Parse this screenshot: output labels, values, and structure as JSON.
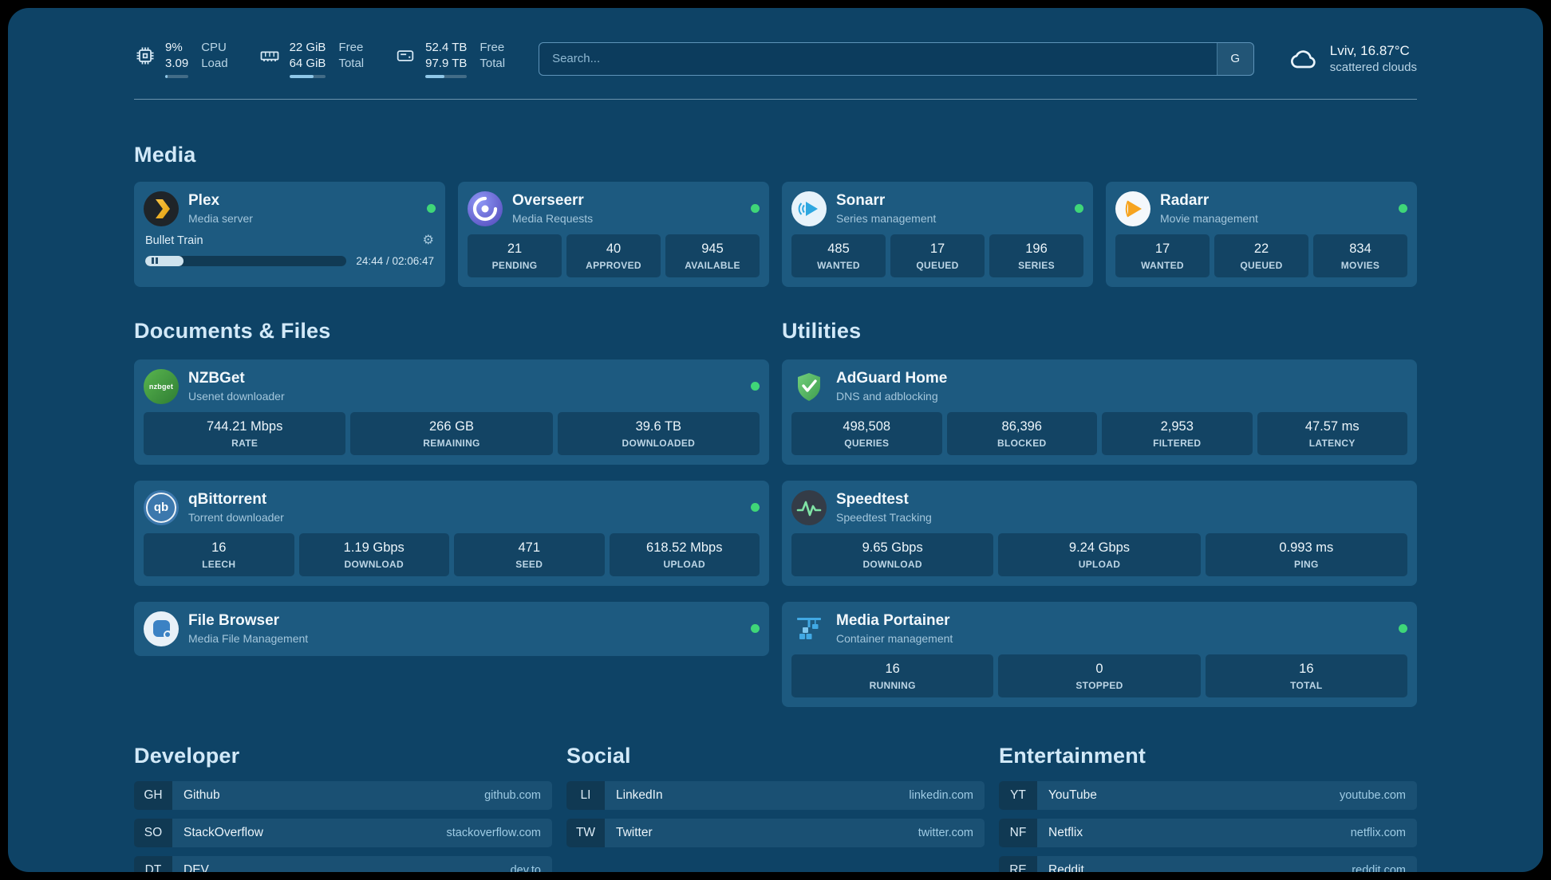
{
  "header": {
    "widgets": [
      {
        "icon": "cpu-icon",
        "value1": "9%",
        "value2": "3.09",
        "label1": "CPU",
        "label2": "Load",
        "bar_pct": 9
      },
      {
        "icon": "memory-icon",
        "value1": "22 GiB",
        "value2": "64 GiB",
        "label1": "Free",
        "label2": "Total",
        "bar_pct": 66
      },
      {
        "icon": "disk-icon",
        "value1": "52.4 TB",
        "value2": "97.9 TB",
        "label1": "Free",
        "label2": "Total",
        "bar_pct": 46
      }
    ],
    "search": {
      "placeholder": "Search...",
      "button_label": "G"
    },
    "weather": {
      "location": "Lviv, 16.87°C",
      "condition": "scattered clouds"
    }
  },
  "sections": {
    "media": {
      "title": "Media"
    },
    "documents": {
      "title": "Documents & Files"
    },
    "utilities": {
      "title": "Utilities"
    }
  },
  "services": {
    "plex": {
      "name": "Plex",
      "subtitle": "Media server",
      "now_playing": "Bullet Train",
      "time": "24:44 / 02:06:47",
      "progress_pct": 19
    },
    "overseerr": {
      "name": "Overseerr",
      "subtitle": "Media Requests",
      "stats": [
        {
          "value": "21",
          "label": "PENDING"
        },
        {
          "value": "40",
          "label": "APPROVED"
        },
        {
          "value": "945",
          "label": "AVAILABLE"
        }
      ]
    },
    "sonarr": {
      "name": "Sonarr",
      "subtitle": "Series management",
      "stats": [
        {
          "value": "485",
          "label": "WANTED"
        },
        {
          "value": "17",
          "label": "QUEUED"
        },
        {
          "value": "196",
          "label": "SERIES"
        }
      ]
    },
    "radarr": {
      "name": "Radarr",
      "subtitle": "Movie management",
      "stats": [
        {
          "value": "17",
          "label": "WANTED"
        },
        {
          "value": "22",
          "label": "QUEUED"
        },
        {
          "value": "834",
          "label": "MOVIES"
        }
      ]
    },
    "nzbget": {
      "name": "NZBGet",
      "subtitle": "Usenet downloader",
      "icon_text": "nzbget",
      "stats": [
        {
          "value": "744.21 Mbps",
          "label": "RATE"
        },
        {
          "value": "266 GB",
          "label": "REMAINING"
        },
        {
          "value": "39.6 TB",
          "label": "DOWNLOADED"
        }
      ]
    },
    "qbittorrent": {
      "name": "qBittorrent",
      "subtitle": "Torrent downloader",
      "icon_text": "qb",
      "stats": [
        {
          "value": "16",
          "label": "LEECH"
        },
        {
          "value": "1.19 Gbps",
          "label": "DOWNLOAD"
        },
        {
          "value": "471",
          "label": "SEED"
        },
        {
          "value": "618.52 Mbps",
          "label": "UPLOAD"
        }
      ]
    },
    "filebrowser": {
      "name": "File Browser",
      "subtitle": "Media File Management"
    },
    "adguard": {
      "name": "AdGuard Home",
      "subtitle": "DNS and adblocking",
      "stats": [
        {
          "value": "498,508",
          "label": "QUERIES"
        },
        {
          "value": "86,396",
          "label": "BLOCKED"
        },
        {
          "value": "2,953",
          "label": "FILTERED"
        },
        {
          "value": "47.57 ms",
          "label": "LATENCY"
        }
      ]
    },
    "speedtest": {
      "name": "Speedtest",
      "subtitle": "Speedtest Tracking",
      "stats": [
        {
          "value": "9.65 Gbps",
          "label": "DOWNLOAD"
        },
        {
          "value": "9.24 Gbps",
          "label": "UPLOAD"
        },
        {
          "value": "0.993 ms",
          "label": "PING"
        }
      ]
    },
    "portainer": {
      "name": "Media Portainer",
      "subtitle": "Container management",
      "stats": [
        {
          "value": "16",
          "label": "RUNNING"
        },
        {
          "value": "0",
          "label": "STOPPED"
        },
        {
          "value": "16",
          "label": "TOTAL"
        }
      ]
    }
  },
  "bookmarks": [
    {
      "title": "Developer",
      "items": [
        {
          "abbr": "GH",
          "name": "Github",
          "url": "github.com"
        },
        {
          "abbr": "SO",
          "name": "StackOverflow",
          "url": "stackoverflow.com"
        },
        {
          "abbr": "DT",
          "name": "DEV",
          "url": "dev.to"
        }
      ]
    },
    {
      "title": "Social",
      "items": [
        {
          "abbr": "LI",
          "name": "LinkedIn",
          "url": "linkedin.com"
        },
        {
          "abbr": "TW",
          "name": "Twitter",
          "url": "twitter.com"
        }
      ]
    },
    {
      "title": "Entertainment",
      "items": [
        {
          "abbr": "YT",
          "name": "YouTube",
          "url": "youtube.com"
        },
        {
          "abbr": "NF",
          "name": "Netflix",
          "url": "netflix.com"
        },
        {
          "abbr": "RE",
          "name": "Reddit",
          "url": "reddit.com"
        }
      ]
    }
  ]
}
